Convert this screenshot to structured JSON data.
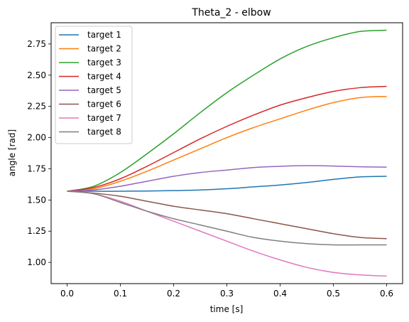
{
  "chart_data": {
    "type": "line",
    "title": "Theta_2 - elbow",
    "xlabel": "time [s]",
    "ylabel": "angle [rad]",
    "xlim": [
      -0.03,
      0.63
    ],
    "ylim": [
      0.83,
      2.92
    ],
    "x_ticks": [
      0.0,
      0.1,
      0.2,
      0.3,
      0.4,
      0.5,
      0.6
    ],
    "x_tick_labels": [
      "0.0",
      "0.1",
      "0.2",
      "0.3",
      "0.4",
      "0.5",
      "0.6"
    ],
    "y_ticks": [
      1.0,
      1.25,
      1.5,
      1.75,
      2.0,
      2.25,
      2.5,
      2.75
    ],
    "y_tick_labels": [
      "1.00",
      "1.25",
      "1.50",
      "1.75",
      "2.00",
      "2.25",
      "2.50",
      "2.75"
    ],
    "grid": false,
    "legend_position": "top-left",
    "x": [
      0.0,
      0.05,
      0.1,
      0.15,
      0.2,
      0.25,
      0.3,
      0.35,
      0.4,
      0.45,
      0.5,
      0.55,
      0.6
    ],
    "series": [
      {
        "name": "target 1",
        "color": "#1f77b4",
        "values": [
          1.57,
          1.57,
          1.57,
          1.572,
          1.575,
          1.58,
          1.59,
          1.605,
          1.62,
          1.64,
          1.665,
          1.685,
          1.69
        ]
      },
      {
        "name": "target 2",
        "color": "#ff7f0e",
        "values": [
          1.57,
          1.59,
          1.65,
          1.73,
          1.82,
          1.91,
          2.0,
          2.08,
          2.15,
          2.22,
          2.28,
          2.32,
          2.33
        ]
      },
      {
        "name": "target 3",
        "color": "#2ca02c",
        "values": [
          1.57,
          1.61,
          1.72,
          1.87,
          2.03,
          2.2,
          2.36,
          2.5,
          2.63,
          2.73,
          2.8,
          2.85,
          2.86
        ]
      },
      {
        "name": "target 4",
        "color": "#d62728",
        "values": [
          1.57,
          1.6,
          1.67,
          1.77,
          1.88,
          1.99,
          2.09,
          2.18,
          2.26,
          2.32,
          2.37,
          2.4,
          2.41
        ]
      },
      {
        "name": "target 5",
        "color": "#9467bd",
        "values": [
          1.57,
          1.58,
          1.61,
          1.65,
          1.69,
          1.72,
          1.74,
          1.76,
          1.77,
          1.775,
          1.772,
          1.766,
          1.763
        ]
      },
      {
        "name": "target 6",
        "color": "#8c564b",
        "values": [
          1.57,
          1.555,
          1.53,
          1.49,
          1.45,
          1.42,
          1.39,
          1.35,
          1.31,
          1.27,
          1.23,
          1.2,
          1.19
        ]
      },
      {
        "name": "target 7",
        "color": "#e377c2",
        "values": [
          1.57,
          1.55,
          1.49,
          1.41,
          1.33,
          1.25,
          1.17,
          1.09,
          1.02,
          0.96,
          0.92,
          0.9,
          0.89
        ]
      },
      {
        "name": "target 8",
        "color": "#7f7f7f",
        "values": [
          1.57,
          1.55,
          1.48,
          1.41,
          1.35,
          1.3,
          1.25,
          1.2,
          1.17,
          1.15,
          1.14,
          1.14,
          1.14
        ]
      }
    ]
  }
}
